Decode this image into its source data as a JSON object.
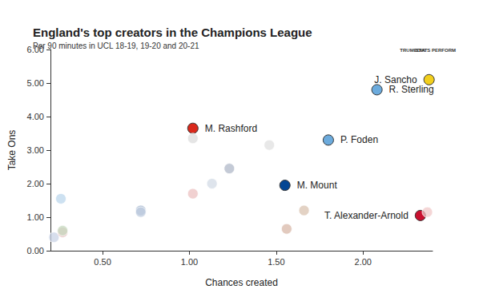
{
  "chart_data": {
    "type": "scatter",
    "title": "England's top creators in the Champions League",
    "subtitle": "Per 90 minutes in UCL 18-19, 19-20 and 20-21",
    "x_label": "Chances created",
    "y_label": "Take Ons",
    "annotations": [
      "TRUMEDIA",
      "STATS PERFORM"
    ],
    "x": [
      2.38,
      2.08,
      1.02,
      1.8,
      1.55,
      2.33,
      0.22,
      0.26,
      0.27,
      0.27,
      0.72,
      0.72,
      1.02,
      1.02,
      1.13,
      1.23,
      1.46,
      1.56,
      1.66,
      2.37
    ],
    "y": [
      5.1,
      4.8,
      3.65,
      3.3,
      1.95,
      1.05,
      0.4,
      1.55,
      0.55,
      0.6,
      1.2,
      1.15,
      1.7,
      3.35,
      2.0,
      2.45,
      3.15,
      0.65,
      1.2,
      1.15
    ],
    "labels": [
      "J. Sancho",
      "R. Sterling",
      "M. Rashford",
      "P. Foden",
      "M. Mount",
      "T. Alexander-Arnold",
      null,
      null,
      null,
      null,
      null,
      null,
      null,
      null,
      null,
      null,
      null,
      null,
      null,
      null
    ],
    "colors": [
      "#f2cf1d",
      "#6cabdd",
      "#da291c",
      "#6cabdd",
      "#034694",
      "#c8102e",
      "#c9d3e6",
      "#bcd7ec",
      "#e3b9b9",
      "#c7d9c0",
      "#9fb3cc",
      "#c2cde0",
      "#ecc2c2",
      "#dcdcdc",
      "#d3dbe6",
      "#b0b8c8",
      "#e0e0e0",
      "#d8b8a8",
      "#d9c3b0",
      "#f0c8c8"
    ],
    "marker": "circle",
    "xlim": [
      0.2,
      2.4
    ],
    "xticks": [
      {
        "value": 0.5,
        "label": "0.50"
      },
      {
        "value": 1,
        "label": "1.00"
      },
      {
        "value": 1.5,
        "label": "1.50"
      },
      {
        "value": 2,
        "label": "2.00"
      }
    ],
    "ylim": [
      0,
      6
    ],
    "yticks": [
      {
        "value": 0,
        "label": "0.00"
      },
      {
        "value": 1,
        "label": "1.00"
      },
      {
        "value": 2,
        "label": "2.00"
      },
      {
        "value": 3,
        "label": "3.00"
      },
      {
        "value": 4,
        "label": "4.00"
      },
      {
        "value": 5,
        "label": "5.00"
      },
      {
        "value": 6,
        "label": "6.00"
      }
    ],
    "grid": false
  }
}
